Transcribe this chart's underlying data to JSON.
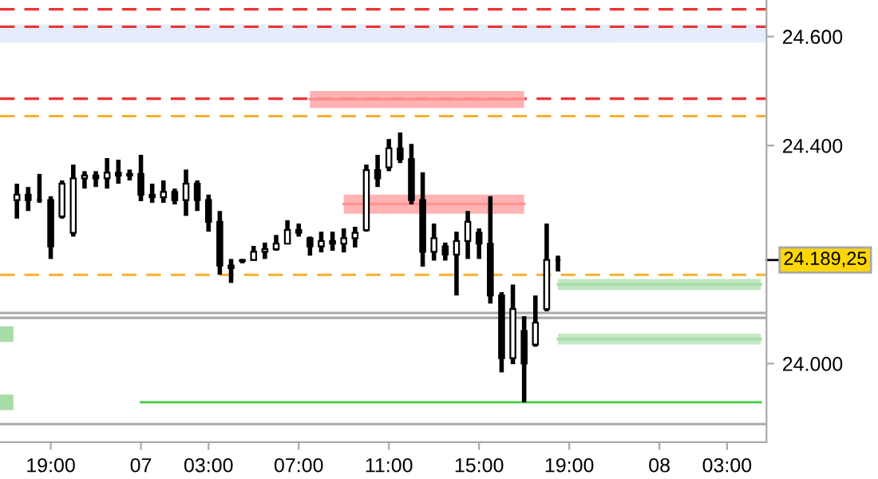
{
  "chart_data": {
    "type": "candlestick",
    "categories": [
      null,
      null,
      null,
      null,
      "19:00",
      null,
      null,
      null,
      null,
      null,
      null,
      null,
      "07",
      null,
      null,
      null,
      null,
      null,
      "03:00",
      null,
      null,
      null,
      null,
      null,
      null,
      null,
      "07:00",
      null,
      null,
      null,
      null,
      null,
      null,
      null,
      "11:00",
      null,
      null,
      null,
      null,
      null,
      null,
      null,
      "15:00",
      null,
      null,
      null,
      null,
      null,
      null,
      null,
      "19:00",
      null,
      null,
      null,
      null,
      null,
      null,
      null,
      "08",
      null,
      null,
      null,
      null,
      null,
      "03:00",
      null,
      null,
      null
    ],
    "ohlc": [
      null,
      [
        24300,
        24330,
        24266,
        24310
      ],
      [
        24310,
        24324,
        24280,
        24300
      ],
      [
        24300,
        24348,
        24295,
        24300
      ],
      [
        24300,
        24307,
        24192,
        24215
      ],
      [
        24270,
        24336,
        24266,
        24330
      ],
      [
        24240,
        24365,
        24233,
        24340
      ],
      [
        24340,
        24353,
        24321,
        24345
      ],
      [
        24345,
        24353,
        24324,
        24340
      ],
      [
        24340,
        24377,
        24321,
        24350
      ],
      [
        24350,
        24374,
        24330,
        24345
      ],
      [
        24345,
        24356,
        24336,
        24348
      ],
      [
        24348,
        24383,
        24298,
        24310
      ],
      [
        24310,
        24330,
        24295,
        24305
      ],
      [
        24305,
        24336,
        24295,
        24315
      ],
      [
        24315,
        24321,
        24292,
        24300
      ],
      [
        24300,
        24356,
        24271,
        24330
      ],
      [
        24330,
        24336,
        24280,
        24300
      ],
      [
        24300,
        24310,
        24242,
        24260
      ],
      [
        24260,
        24280,
        24163,
        24180
      ],
      [
        24180,
        24192,
        24148,
        24175
      ],
      [
        24188,
        24192,
        24184,
        24190
      ],
      [
        24190,
        24216,
        24189,
        24205
      ],
      [
        24205,
        24222,
        24192,
        24210
      ],
      [
        24210,
        24236,
        24207,
        24220
      ],
      [
        24220,
        24263,
        24219,
        24245
      ],
      [
        24245,
        24257,
        24233,
        24240
      ],
      [
        24230,
        24233,
        24198,
        24215
      ],
      [
        24215,
        24242,
        24204,
        24225
      ],
      [
        24225,
        24242,
        24207,
        24220
      ],
      [
        24220,
        24248,
        24204,
        24230
      ],
      [
        24230,
        24251,
        24213,
        24240
      ],
      [
        24245,
        24365,
        24242,
        24355
      ],
      [
        24355,
        24383,
        24324,
        24340
      ],
      [
        24360,
        24412,
        24353,
        24395
      ],
      [
        24395,
        24424,
        24368,
        24375
      ],
      [
        24375,
        24403,
        24292,
        24300
      ],
      [
        24300,
        24351,
        24178,
        24205
      ],
      [
        24205,
        24257,
        24189,
        24230
      ],
      [
        24215,
        24222,
        24189,
        24200
      ],
      [
        24200,
        24242,
        24125,
        24225
      ],
      [
        24225,
        24280,
        24192,
        24260
      ],
      [
        24240,
        24248,
        24192,
        24220
      ],
      [
        24220,
        24307,
        24110,
        24125
      ],
      [
        24125,
        24131,
        23984,
        24010
      ],
      [
        24010,
        24145,
        23999,
        24100
      ],
      [
        24060,
        24087,
        23929,
        24000
      ],
      [
        24035,
        24125,
        24031,
        24075
      ],
      [
        24100,
        24257,
        24096,
        24190
      ],
      [
        24190,
        24198,
        24169,
        24190
      ],
      null,
      null,
      null,
      null,
      null,
      null,
      null,
      null,
      null,
      null,
      null,
      null,
      null,
      null,
      null,
      null,
      null,
      null
    ],
    "series": [
      {
        "type": "line",
        "color": "#ff9090",
        "values": [
          null,
          null,
          null,
          null,
          null,
          null,
          null,
          null,
          null,
          null,
          null,
          null,
          null,
          null,
          null,
          null,
          null,
          null,
          null,
          null,
          null,
          null,
          null,
          null,
          null,
          null,
          null,
          24485,
          24485,
          24485,
          24485,
          24485,
          24485,
          24485,
          24485,
          24485,
          24485,
          24485,
          24485,
          24485,
          24485,
          24485,
          24485,
          24485,
          24485,
          24485,
          24485,
          null,
          null,
          null,
          null,
          null,
          null,
          null,
          null,
          null,
          null,
          null,
          null,
          null,
          null,
          null,
          null,
          null,
          null,
          null,
          null,
          null
        ],
        "lower": [
          null,
          null,
          null,
          null,
          null,
          null,
          null,
          null,
          null,
          null,
          null,
          null,
          null,
          null,
          null,
          null,
          null,
          null,
          null,
          null,
          null,
          null,
          null,
          null,
          null,
          null,
          null,
          24469,
          24469,
          24469,
          24469,
          24469,
          24469,
          24469,
          24469,
          24469,
          24469,
          24469,
          24469,
          24469,
          24469,
          24469,
          24469,
          24469,
          24469,
          24469,
          24469,
          null,
          null,
          null,
          null,
          null,
          null,
          null,
          null,
          null,
          null,
          null,
          null,
          null,
          null,
          null,
          null,
          null,
          null,
          null,
          null,
          null
        ],
        "upper": [
          null,
          null,
          null,
          null,
          null,
          null,
          null,
          null,
          null,
          null,
          null,
          null,
          null,
          null,
          null,
          null,
          null,
          null,
          null,
          null,
          null,
          null,
          null,
          null,
          null,
          null,
          null,
          24500,
          24500,
          24500,
          24500,
          24500,
          24500,
          24500,
          24500,
          24500,
          24500,
          24500,
          24500,
          24500,
          24500,
          24500,
          24500,
          24500,
          24500,
          24500,
          24500,
          null,
          null,
          null,
          null,
          null,
          null,
          null,
          null,
          null,
          null,
          null,
          null,
          null,
          null,
          null,
          null,
          null,
          null,
          null,
          null,
          null
        ]
      },
      {
        "type": "line",
        "color": "#ff9393",
        "values": [
          null,
          null,
          null,
          null,
          null,
          null,
          null,
          null,
          null,
          null,
          null,
          null,
          null,
          null,
          null,
          null,
          null,
          null,
          null,
          null,
          null,
          null,
          null,
          null,
          null,
          null,
          null,
          null,
          null,
          null,
          24293,
          24293,
          24293,
          24293,
          24293,
          24293,
          24293,
          24293,
          24293,
          24293,
          24293,
          24293,
          24293,
          24293,
          24293,
          24293,
          24293,
          null,
          null,
          null,
          null,
          null,
          null,
          null,
          null,
          null,
          null,
          null,
          null,
          null,
          null,
          null,
          null,
          null,
          null,
          null,
          null,
          null
        ],
        "lower": [
          null,
          null,
          null,
          null,
          null,
          null,
          null,
          null,
          null,
          null,
          null,
          null,
          null,
          null,
          null,
          null,
          null,
          null,
          null,
          null,
          null,
          null,
          null,
          null,
          null,
          null,
          null,
          null,
          null,
          null,
          24275,
          24275,
          24275,
          24275,
          24275,
          24275,
          24275,
          24275,
          24275,
          24275,
          24275,
          24275,
          24275,
          24275,
          24275,
          24275,
          24275,
          null,
          null,
          null,
          null,
          null,
          null,
          null,
          null,
          null,
          null,
          null,
          null,
          null,
          null,
          null,
          null,
          null,
          null,
          null,
          null,
          null
        ],
        "upper": [
          null,
          null,
          null,
          null,
          null,
          null,
          null,
          null,
          null,
          null,
          null,
          null,
          null,
          null,
          null,
          null,
          null,
          null,
          null,
          null,
          null,
          null,
          null,
          null,
          null,
          null,
          null,
          null,
          null,
          null,
          24310,
          24310,
          24310,
          24310,
          24310,
          24310,
          24310,
          24310,
          24310,
          24310,
          24310,
          24310,
          24310,
          24310,
          24310,
          24310,
          24310,
          null,
          null,
          null,
          null,
          null,
          null,
          null,
          null,
          null,
          null,
          null,
          null,
          null,
          null,
          null,
          null,
          null,
          null,
          null,
          null,
          null
        ]
      },
      {
        "type": "line",
        "color": "#a8dca8",
        "values": [
          null,
          null,
          null,
          null,
          null,
          null,
          null,
          null,
          null,
          null,
          null,
          null,
          null,
          null,
          null,
          null,
          null,
          null,
          null,
          null,
          null,
          null,
          null,
          null,
          null,
          null,
          null,
          null,
          null,
          null,
          null,
          null,
          null,
          null,
          null,
          null,
          null,
          null,
          null,
          null,
          null,
          null,
          null,
          null,
          null,
          null,
          null,
          null,
          null,
          24145,
          24145,
          24145,
          24145,
          24145,
          24145,
          24145,
          24145,
          24145,
          24145,
          24145,
          24145,
          24145,
          24145,
          24145,
          24145,
          24145,
          24145,
          24145
        ],
        "lower": [
          null,
          null,
          null,
          null,
          null,
          null,
          null,
          null,
          null,
          null,
          null,
          null,
          null,
          null,
          null,
          null,
          null,
          null,
          null,
          null,
          null,
          null,
          null,
          null,
          null,
          null,
          null,
          null,
          null,
          null,
          null,
          null,
          null,
          null,
          null,
          null,
          null,
          null,
          null,
          null,
          null,
          null,
          null,
          null,
          null,
          null,
          null,
          null,
          null,
          24135,
          24135,
          24135,
          24135,
          24135,
          24135,
          24135,
          24135,
          24135,
          24135,
          24135,
          24135,
          24135,
          24135,
          24135,
          24135,
          24135,
          24135,
          24135
        ],
        "upper": [
          null,
          null,
          null,
          null,
          null,
          null,
          null,
          null,
          null,
          null,
          null,
          null,
          null,
          null,
          null,
          null,
          null,
          null,
          null,
          null,
          null,
          null,
          null,
          null,
          null,
          null,
          null,
          null,
          null,
          null,
          null,
          null,
          null,
          null,
          null,
          null,
          null,
          null,
          null,
          null,
          null,
          null,
          null,
          null,
          null,
          null,
          null,
          null,
          null,
          24155,
          24155,
          24155,
          24155,
          24155,
          24155,
          24155,
          24155,
          24155,
          24155,
          24155,
          24155,
          24155,
          24155,
          24155,
          24155,
          24155,
          24155,
          24155
        ]
      },
      {
        "type": "line",
        "color": "#abdeab",
        "values": [
          null,
          null,
          null,
          null,
          null,
          null,
          null,
          null,
          null,
          null,
          null,
          null,
          null,
          null,
          null,
          null,
          null,
          null,
          null,
          null,
          null,
          null,
          null,
          null,
          null,
          null,
          null,
          null,
          null,
          null,
          null,
          null,
          null,
          null,
          null,
          null,
          null,
          null,
          null,
          null,
          null,
          null,
          null,
          null,
          null,
          null,
          null,
          null,
          null,
          24045,
          24045,
          24045,
          24045,
          24045,
          24045,
          24045,
          24045,
          24045,
          24045,
          24045,
          24045,
          24045,
          24045,
          24045,
          24045,
          24045,
          24045,
          24045
        ],
        "lower": [
          null,
          null,
          null,
          null,
          null,
          null,
          null,
          null,
          null,
          null,
          null,
          null,
          null,
          null,
          null,
          null,
          null,
          null,
          null,
          null,
          null,
          null,
          null,
          null,
          null,
          null,
          null,
          null,
          null,
          null,
          null,
          null,
          null,
          null,
          null,
          null,
          null,
          null,
          null,
          null,
          null,
          null,
          null,
          null,
          null,
          null,
          null,
          null,
          null,
          24035,
          24035,
          24035,
          24035,
          24035,
          24035,
          24035,
          24035,
          24035,
          24035,
          24035,
          24035,
          24035,
          24035,
          24035,
          24035,
          24035,
          24035,
          24035
        ],
        "upper": [
          null,
          null,
          null,
          null,
          null,
          null,
          null,
          null,
          null,
          null,
          null,
          null,
          null,
          null,
          null,
          null,
          null,
          null,
          null,
          null,
          null,
          null,
          null,
          null,
          null,
          null,
          null,
          null,
          null,
          null,
          null,
          null,
          null,
          null,
          null,
          null,
          null,
          null,
          null,
          null,
          null,
          null,
          null,
          null,
          null,
          null,
          null,
          null,
          null,
          24055,
          24055,
          24055,
          24055,
          24055,
          24055,
          24055,
          24055,
          24055,
          24055,
          24055,
          24055,
          24055,
          24055,
          24055,
          24055,
          24055,
          24055,
          24055
        ]
      },
      {
        "type": "line",
        "color": "#a8dca8",
        "marker": "square",
        "values": [
          24054,
          null,
          null,
          null,
          null,
          null,
          null,
          null,
          null,
          null,
          null,
          null,
          null,
          null,
          null,
          null,
          null,
          null,
          null,
          null,
          null,
          null,
          null,
          null,
          null,
          null,
          null,
          null,
          null,
          null,
          null,
          null,
          null,
          null,
          null,
          null,
          null,
          null,
          null,
          null,
          null,
          null,
          null,
          null,
          null,
          null,
          null,
          null,
          null,
          null,
          null,
          null,
          null,
          null,
          null,
          null,
          null,
          null,
          null,
          null,
          null,
          null,
          null,
          null,
          null,
          null,
          null,
          null
        ]
      },
      {
        "type": "line",
        "color": "#a8dca8",
        "marker": "square",
        "values": [
          23929,
          null,
          null,
          null,
          null,
          null,
          null,
          null,
          null,
          null,
          null,
          null,
          null,
          null,
          null,
          null,
          null,
          null,
          null,
          null,
          null,
          null,
          null,
          null,
          null,
          null,
          null,
          null,
          null,
          null,
          null,
          null,
          null,
          null,
          null,
          null,
          null,
          null,
          null,
          null,
          null,
          null,
          null,
          null,
          null,
          null,
          null,
          null,
          null,
          null,
          null,
          null,
          null,
          null,
          null,
          null,
          null,
          null,
          null,
          null,
          null,
          null,
          null,
          null,
          null,
          null,
          null,
          null
        ]
      },
      {
        "type": "line",
        "color": "#44cc44",
        "values": [
          null,
          null,
          null,
          null,
          null,
          null,
          null,
          null,
          null,
          null,
          null,
          null,
          23929,
          23929,
          23929,
          23929,
          23929,
          23929,
          23929,
          23929,
          23929,
          23929,
          23929,
          23929,
          23929,
          23929,
          23929,
          23929,
          23929,
          23929,
          23929,
          23929,
          23929,
          23929,
          23929,
          23929,
          23929,
          23929,
          23929,
          23929,
          23929,
          23929,
          23929,
          23929,
          23929,
          23929,
          23929,
          23929,
          23929,
          23929,
          23929,
          23929,
          23929,
          23929,
          23929,
          23929,
          23929,
          23929,
          23929,
          23929,
          23929,
          23929,
          23929,
          23929,
          23929,
          23929,
          23929,
          23929
        ]
      }
    ],
    "bands": [
      {
        "axis": "y",
        "from": 24591,
        "to": 24620,
        "color": "#5588ee"
      }
    ],
    "ref_lines": [
      {
        "axis": "y",
        "value": 24650,
        "color": "#ee3333",
        "line_style": "dashed"
      },
      {
        "axis": "y",
        "value": 24618,
        "color": "#ee3333",
        "line_style": "dashed"
      },
      {
        "axis": "y",
        "value": 24486,
        "color": "#ee3333",
        "line_style": "dashed"
      },
      {
        "axis": "y",
        "value": 24454,
        "color": "#f5b030",
        "line_style": "dashed"
      },
      {
        "axis": "y",
        "value": 24163,
        "color": "#f5b030",
        "line_style": "dashed"
      },
      {
        "axis": "y",
        "value": 24093,
        "color": "#aaaaaa",
        "line_style": "solid"
      },
      {
        "axis": "y",
        "value": 24084,
        "color": "#aaaaaa",
        "line_style": "solid"
      },
      {
        "axis": "y",
        "value": 23889,
        "color": "#aaaaaa",
        "line_style": "solid"
      }
    ],
    "annotations": [
      "24.189,25"
    ],
    "ylim": [
      23856,
      24667
    ],
    "yticks": [
      {
        "value": 24000,
        "label": "24.000"
      },
      {
        "value": 24400,
        "label": "24.400"
      },
      {
        "value": 24600,
        "label": "24.600"
      }
    ]
  }
}
